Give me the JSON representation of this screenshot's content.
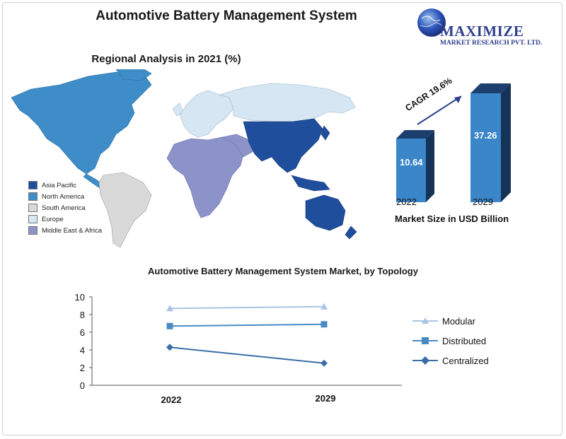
{
  "header": {
    "title": "Automotive Battery Management System"
  },
  "logo": {
    "line1": "MAXIMIZE",
    "line2": "MARKET RESEARCH PVT. LTD."
  },
  "map_section": {
    "title": "Regional Analysis in 2021 (%)",
    "legend": [
      {
        "label": "Asia Pacific",
        "color": "#1f4e9c"
      },
      {
        "label": "North America",
        "color": "#3f8dc8"
      },
      {
        "label": "South America",
        "color": "#d9d9d9"
      },
      {
        "label": "Europe",
        "color": "#d6e7f3"
      },
      {
        "label": "Middle East & Africa",
        "color": "#8c93c8"
      }
    ]
  },
  "market_size": {
    "cagr_label": "CAGR 19.6%",
    "caption": "Market Size in USD Billion",
    "bars": [
      {
        "year": "2022",
        "value": "10.64",
        "num": 10.64
      },
      {
        "year": "2029",
        "value": "37.26",
        "num": 37.26
      }
    ]
  },
  "chart_data": {
    "type": "line",
    "title": "Automotive Battery Management System Market, by Topology",
    "categories": [
      "2022",
      "2029"
    ],
    "ylim": [
      0,
      10
    ],
    "yticks": [
      "0",
      "2",
      "4",
      "6",
      "8",
      "10"
    ],
    "series": [
      {
        "name": "Modular",
        "values": [
          8.7,
          8.9
        ],
        "color": "#a9c4e4",
        "marker": "triangle"
      },
      {
        "name": "Distributed",
        "values": [
          6.7,
          6.9
        ],
        "color": "#4a8ac4",
        "marker": "square"
      },
      {
        "name": "Centralized",
        "values": [
          4.3,
          2.5
        ],
        "color": "#3a6ea8",
        "marker": "diamond"
      }
    ]
  }
}
